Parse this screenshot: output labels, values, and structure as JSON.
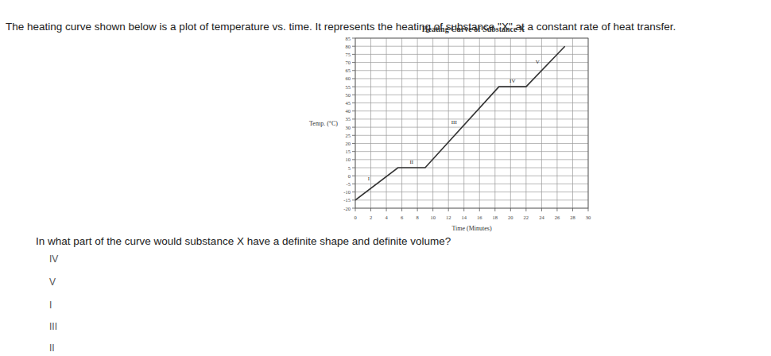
{
  "header": {
    "text": "The heating curve shown below is a plot of temperature vs. time.  It represents the heating of substance \"X\" at a constant rate of heat transfer."
  },
  "chart_data": {
    "type": "line",
    "title": "Heating Curve of Substance X",
    "x_label": "Time (Minutes)",
    "y_label": "Temp. (°C)",
    "x": [
      0,
      5.5,
      9,
      18.5,
      22,
      27
    ],
    "values": [
      -15,
      5,
      5,
      55,
      55,
      80
    ],
    "color": "#333333",
    "annotations": [
      "I",
      "II",
      "III",
      "IV",
      "V"
    ],
    "xlim": [
      0,
      30
    ],
    "xticks": [
      0,
      2,
      4,
      6,
      8,
      10,
      12,
      14,
      16,
      18,
      20,
      22,
      24,
      26,
      28,
      30
    ],
    "ylim": [
      -20,
      85
    ],
    "yticks": [
      -20,
      -15,
      -10,
      -5,
      0,
      5,
      10,
      15,
      20,
      25,
      30,
      35,
      40,
      45,
      50,
      55,
      60,
      65,
      70,
      75,
      80,
      85
    ],
    "grid": true
  },
  "question": {
    "text": "In what part of the curve would substance X have a definite shape and definite volume?"
  },
  "options": [
    "IV",
    "V",
    "I",
    "III",
    "II"
  ]
}
